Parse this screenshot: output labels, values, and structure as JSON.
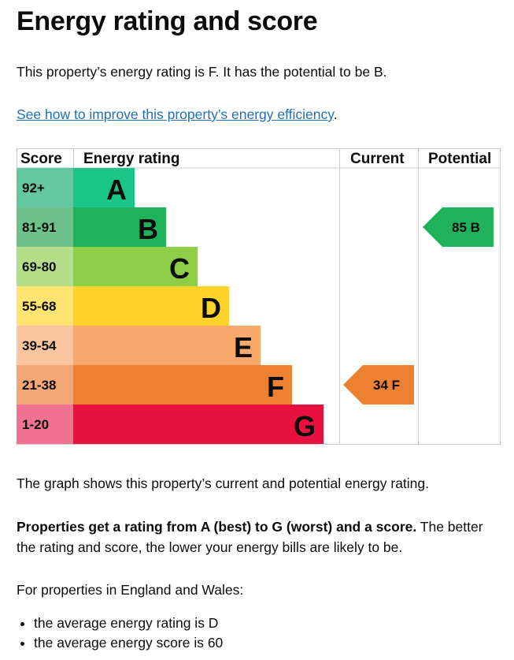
{
  "title": "Energy rating and score",
  "intro": "This property’s energy rating is F. It has the potential to be B.",
  "link": "See how to improve this property’s energy efficiency",
  "link_suffix": ".",
  "chart_data": {
    "type": "table",
    "headers": [
      "Score",
      "Energy rating",
      "Current",
      "Potential"
    ],
    "bands": [
      {
        "score": "92+",
        "letter": "A",
        "color": "#19c688",
        "light": "#64c7a1"
      },
      {
        "score": "81-91",
        "letter": "B",
        "color": "#20b25b",
        "light": "#6fc18b"
      },
      {
        "score": "69-80",
        "letter": "C",
        "color": "#8dce46",
        "light": "#b5de8b"
      },
      {
        "score": "55-68",
        "letter": "D",
        "color": "#ffd42a",
        "light": "#ffe472"
      },
      {
        "score": "39-54",
        "letter": "E",
        "color": "#f8a86b",
        "light": "#fbc59f"
      },
      {
        "score": "21-38",
        "letter": "F",
        "color": "#ee8032",
        "light": "#f3a777"
      },
      {
        "score": "1-20",
        "letter": "G",
        "color": "#e8103f",
        "light": "#f07290"
      }
    ],
    "current": {
      "score": 34,
      "letter": "F",
      "color": "#ee8032"
    },
    "potential": {
      "score": 85,
      "letter": "B",
      "color": "#20b25b"
    }
  },
  "graph_note": "The graph shows this property’s current and potential energy rating.",
  "bold_text": "Properties get a rating from A (best) to G (worst) and a score.",
  "rest_text": " The better the rating and score, the lower your energy bills are likely to be.",
  "avg_intro": "For properties in England and Wales:",
  "averages": [
    "the average energy rating is D",
    "the average energy score is 60"
  ]
}
